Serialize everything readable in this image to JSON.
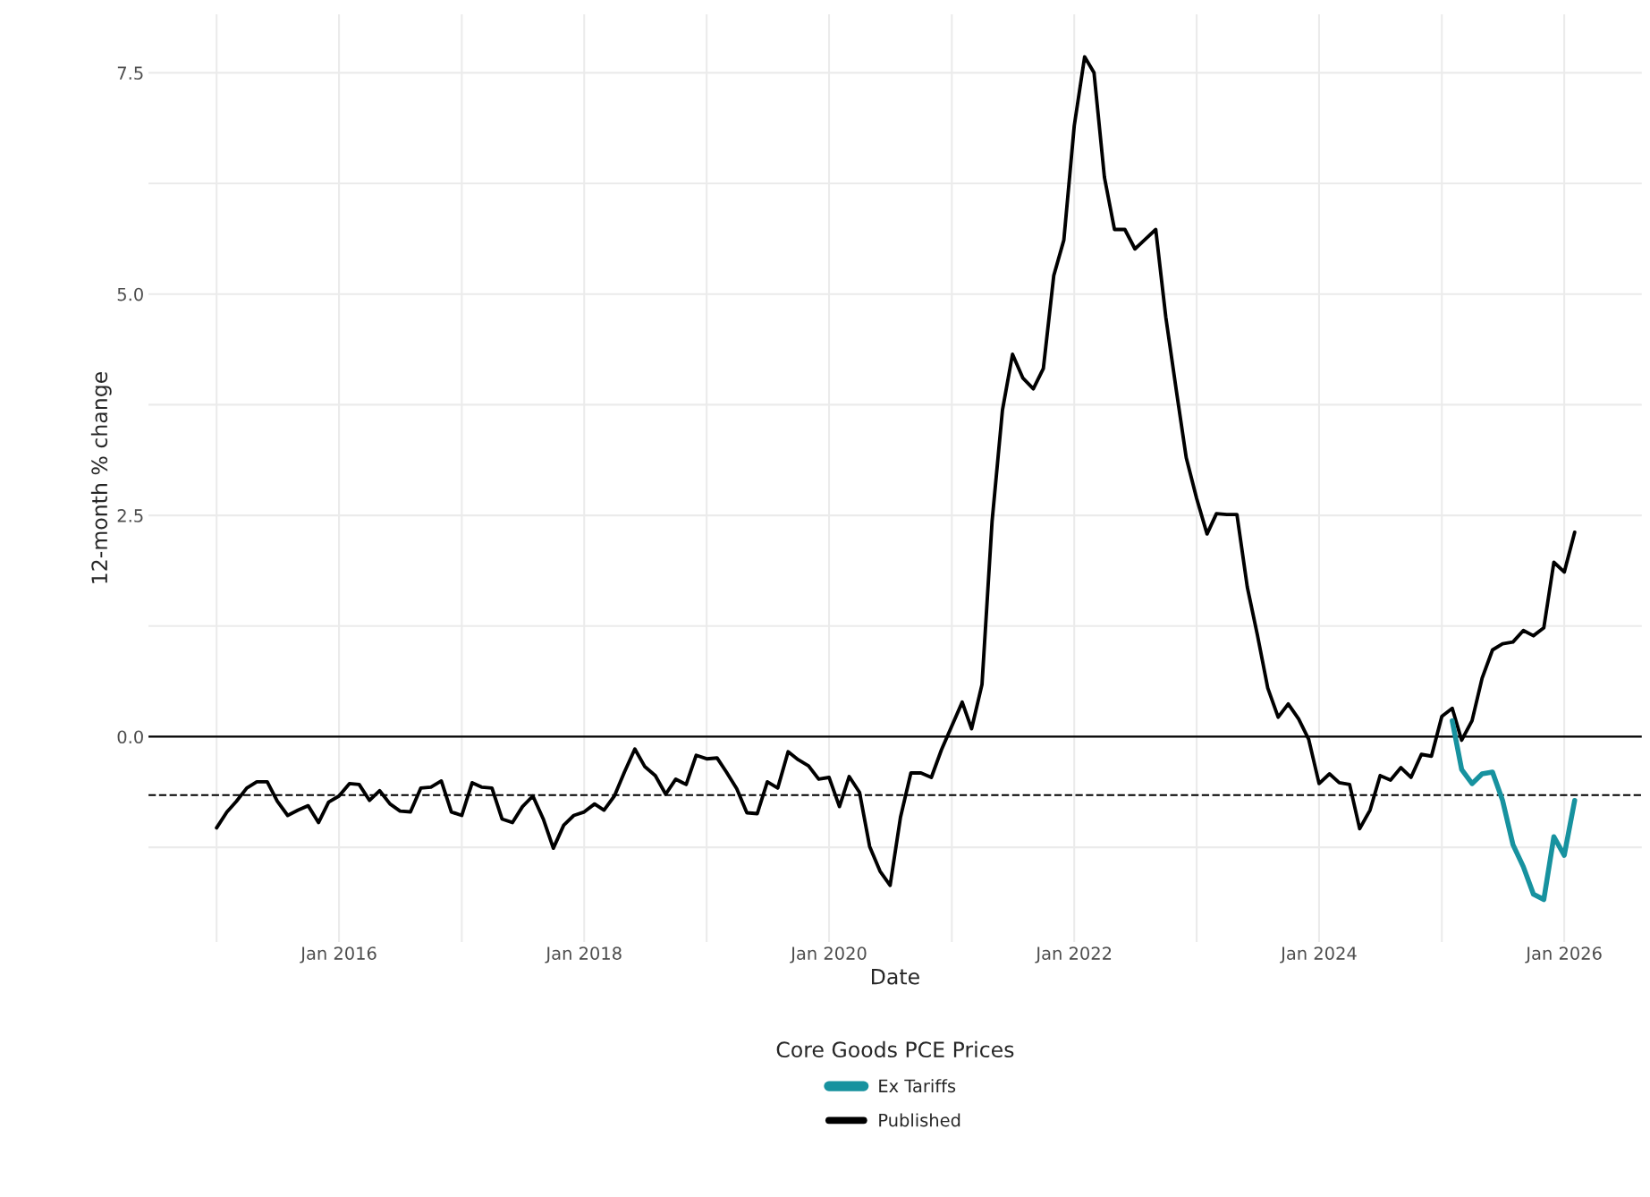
{
  "chart_data": {
    "type": "line",
    "xlabel": "Date",
    "ylabel": "12-month % change",
    "legend_title": "Core Goods PCE Prices",
    "series": [
      {
        "name": "Ex Tariffs",
        "color": "#17929f",
        "x": [
          "2025-02",
          "2025-03",
          "2025-04",
          "2025-05",
          "2025-06",
          "2025-07",
          "2025-08",
          "2025-09",
          "2025-10",
          "2025-11",
          "2025-12",
          "2026-01",
          "2026-02"
        ],
        "values": [
          0.18,
          -0.37,
          -0.53,
          -0.42,
          -0.4,
          -0.72,
          -1.22,
          -1.47,
          -1.78,
          -1.84,
          -1.13,
          -1.34,
          -0.72
        ]
      },
      {
        "name": "Published",
        "color": "#000000",
        "x": [
          "2015-01",
          "2015-02",
          "2015-03",
          "2015-04",
          "2015-05",
          "2015-06",
          "2015-07",
          "2015-08",
          "2015-09",
          "2015-10",
          "2015-11",
          "2015-12",
          "2016-01",
          "2016-02",
          "2016-03",
          "2016-04",
          "2016-05",
          "2016-06",
          "2016-07",
          "2016-08",
          "2016-09",
          "2016-10",
          "2016-11",
          "2016-12",
          "2017-01",
          "2017-02",
          "2017-03",
          "2017-04",
          "2017-05",
          "2017-06",
          "2017-07",
          "2017-08",
          "2017-09",
          "2017-10",
          "2017-11",
          "2017-12",
          "2018-01",
          "2018-02",
          "2018-03",
          "2018-04",
          "2018-05",
          "2018-06",
          "2018-07",
          "2018-08",
          "2018-09",
          "2018-10",
          "2018-11",
          "2018-12",
          "2019-01",
          "2019-02",
          "2019-03",
          "2019-04",
          "2019-05",
          "2019-06",
          "2019-07",
          "2019-08",
          "2019-09",
          "2019-10",
          "2019-11",
          "2019-12",
          "2020-01",
          "2020-02",
          "2020-03",
          "2020-04",
          "2020-05",
          "2020-06",
          "2020-07",
          "2020-08",
          "2020-09",
          "2020-10",
          "2020-11",
          "2020-12",
          "2021-01",
          "2021-02",
          "2021-03",
          "2021-04",
          "2021-05",
          "2021-06",
          "2021-07",
          "2021-08",
          "2021-09",
          "2021-10",
          "2021-11",
          "2021-12",
          "2022-01",
          "2022-02",
          "2022-03",
          "2022-04",
          "2022-05",
          "2022-06",
          "2022-07",
          "2022-08",
          "2022-09",
          "2022-10",
          "2022-11",
          "2022-12",
          "2023-01",
          "2023-02",
          "2023-03",
          "2023-04",
          "2023-05",
          "2023-06",
          "2023-07",
          "2023-08",
          "2023-09",
          "2023-10",
          "2023-11",
          "2023-12",
          "2024-01",
          "2024-02",
          "2024-03",
          "2024-04",
          "2024-05",
          "2024-06",
          "2024-07",
          "2024-08",
          "2024-09",
          "2024-10",
          "2024-11",
          "2024-12",
          "2025-01",
          "2025-02",
          "2025-03",
          "2025-04",
          "2025-05",
          "2025-06",
          "2025-07",
          "2025-08",
          "2025-09",
          "2025-10",
          "2025-11",
          "2025-12",
          "2026-01",
          "2026-02"
        ],
        "values": [
          -1.03,
          -0.85,
          -0.73,
          -0.58,
          -0.51,
          -0.51,
          -0.73,
          -0.89,
          -0.83,
          -0.78,
          -0.97,
          -0.74,
          -0.67,
          -0.53,
          -0.54,
          -0.72,
          -0.61,
          -0.76,
          -0.84,
          -0.85,
          -0.58,
          -0.57,
          -0.5,
          -0.85,
          -0.89,
          -0.52,
          -0.57,
          -0.58,
          -0.93,
          -0.97,
          -0.79,
          -0.67,
          -0.93,
          -1.26,
          -1.0,
          -0.89,
          -0.85,
          -0.76,
          -0.83,
          -0.67,
          -0.4,
          -0.14,
          -0.34,
          -0.44,
          -0.65,
          -0.48,
          -0.54,
          -0.21,
          -0.25,
          -0.24,
          -0.4,
          -0.59,
          -0.86,
          -0.87,
          -0.51,
          -0.58,
          -0.17,
          -0.26,
          -0.33,
          -0.48,
          -0.46,
          -0.79,
          -0.45,
          -0.63,
          -1.24,
          -1.52,
          -1.68,
          -0.91,
          -0.41,
          -0.41,
          -0.46,
          -0.15,
          0.12,
          0.39,
          0.09,
          0.59,
          2.43,
          3.69,
          4.32,
          4.05,
          3.93,
          4.16,
          5.21,
          5.61,
          6.9,
          7.68,
          7.5,
          6.32,
          5.73,
          5.73,
          5.51,
          5.62,
          5.73,
          4.74,
          3.92,
          3.15,
          2.69,
          2.29,
          2.52,
          2.51,
          2.51,
          1.69,
          1.15,
          0.55,
          0.22,
          0.37,
          0.2,
          -0.03,
          -0.53,
          -0.42,
          -0.52,
          -0.54,
          -1.04,
          -0.83,
          -0.44,
          -0.49,
          -0.35,
          -0.46,
          -0.2,
          -0.22,
          0.23,
          0.32,
          -0.04,
          0.18,
          0.66,
          0.98,
          1.05,
          1.07,
          1.2,
          1.14,
          1.23,
          1.97,
          1.86,
          2.31
        ]
      }
    ],
    "xlim": [
      "2014-06-12",
      "2026-08-20"
    ],
    "xticks": [
      {
        "value": "2015-01",
        "label": null
      },
      {
        "value": "2016-01",
        "label": "Jan 2016"
      },
      {
        "value": "2017-01",
        "label": null
      },
      {
        "value": "2018-01",
        "label": "Jan 2018"
      },
      {
        "value": "2019-01",
        "label": null
      },
      {
        "value": "2020-01",
        "label": "Jan 2020"
      },
      {
        "value": "2021-01",
        "label": null
      },
      {
        "value": "2022-01",
        "label": "Jan 2022"
      },
      {
        "value": "2023-01",
        "label": null
      },
      {
        "value": "2024-01",
        "label": "Jan 2024"
      },
      {
        "value": "2025-01",
        "label": null
      },
      {
        "value": "2026-01",
        "label": "Jan 2026"
      }
    ],
    "ylim": [
      -2.32,
      8.16
    ],
    "yticks": [
      {
        "value": -1.25,
        "label": null
      },
      {
        "value": 0,
        "label": "0.0"
      },
      {
        "value": 1.25,
        "label": null
      },
      {
        "value": 2.5,
        "label": "2.5"
      },
      {
        "value": 3.75,
        "label": null
      },
      {
        "value": 5,
        "label": "5.0"
      },
      {
        "value": 6.25,
        "label": null
      },
      {
        "value": 7.5,
        "label": "7.5"
      }
    ],
    "ref_lines": [
      {
        "axis": "y",
        "value": 0,
        "color": "#000000",
        "line_style": "solid"
      },
      {
        "axis": "y",
        "value": -0.66,
        "color": "#000000",
        "line_style": "dashed"
      }
    ],
    "grid": true,
    "legend": "bottom",
    "line_style": "solid",
    "marker": "none"
  }
}
